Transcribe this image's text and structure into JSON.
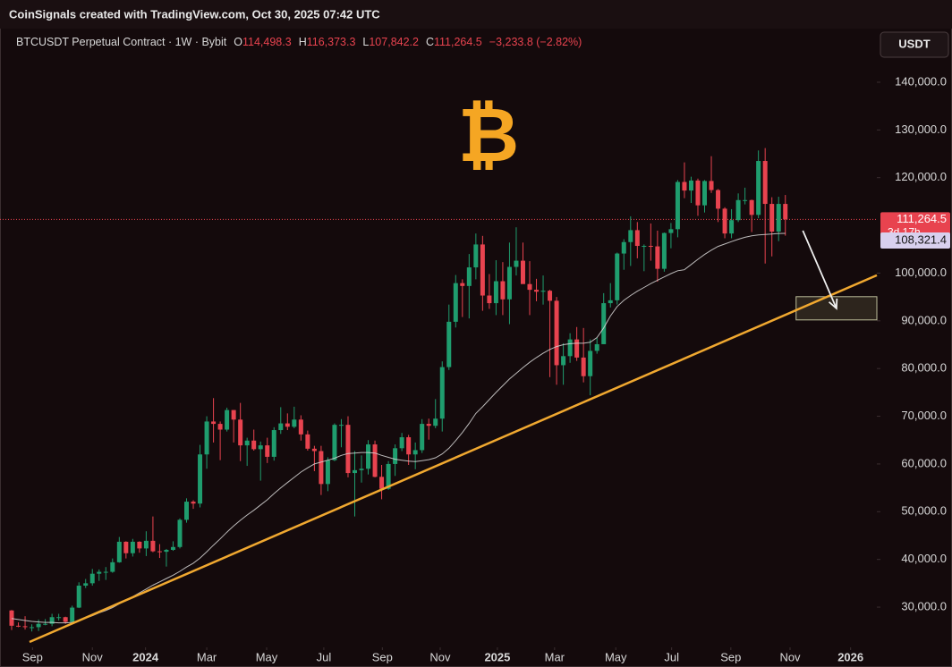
{
  "header": {
    "source": "CoinSignals created with TradingView.com, Oct 30, 2025 07:42 UTC",
    "symbol": "BTCUSDT Perpetual Contract · 1W · Bybit",
    "ohlc": [
      {
        "key": "O",
        "value": "114,498.3"
      },
      {
        "key": "H",
        "value": "116,373.3"
      },
      {
        "key": "L",
        "value": "107,842.2"
      },
      {
        "key": "C",
        "value": "111,264.5"
      }
    ],
    "change": "−3,233.8 (−2.82%)",
    "currency": "USDT"
  },
  "chart_data": {
    "type": "candlestick",
    "logo": "₿",
    "up_color": "#1f9d6e",
    "down_color": "#e8434f",
    "ma_color": "#d9d9d9",
    "grid": false,
    "xlim": [
      -1.73,
      128.6
    ],
    "ylim": [
      21950,
      151610
    ],
    "yticks": [
      {
        "value": 140000,
        "label": "140,000.0"
      },
      {
        "value": 130000,
        "label": "130,000.0"
      },
      {
        "value": 120000,
        "label": "120,000.0"
      },
      {
        "value": 100000,
        "label": "100,000.0"
      },
      {
        "value": 90000,
        "label": "90,000.0"
      },
      {
        "value": 80000,
        "label": "80,000.0"
      },
      {
        "value": 70000,
        "label": "70,000.0"
      },
      {
        "value": 60000,
        "label": "60,000.0"
      },
      {
        "value": 50000,
        "label": "50,000.0"
      },
      {
        "value": 40000,
        "label": "40,000.0"
      },
      {
        "value": 30000,
        "label": "30,000.0"
      }
    ],
    "xticks": [
      {
        "value": 3.1,
        "label": "Sep"
      },
      {
        "value": 12.0,
        "label": "Nov"
      },
      {
        "value": 19.9,
        "label": "2024"
      },
      {
        "value": 29.0,
        "label": "Mar"
      },
      {
        "value": 37.9,
        "label": "May"
      },
      {
        "value": 46.4,
        "label": "Jul"
      },
      {
        "value": 55.1,
        "label": "Sep"
      },
      {
        "value": 63.7,
        "label": "Nov"
      },
      {
        "value": 72.2,
        "label": "2025"
      },
      {
        "value": 80.7,
        "label": "Mar"
      },
      {
        "value": 89.8,
        "label": "May"
      },
      {
        "value": 98.1,
        "label": "Jul"
      },
      {
        "value": 106.9,
        "label": "Sep"
      },
      {
        "value": 115.7,
        "label": "Nov"
      },
      {
        "value": 124.7,
        "label": "2026"
      }
    ],
    "ohlc": [
      [
        29300,
        29400,
        25200,
        26100
      ],
      [
        26100,
        26800,
        25800,
        26000
      ],
      [
        26000,
        28100,
        25300,
        25800
      ],
      [
        25800,
        26400,
        24900,
        25800
      ],
      [
        25800,
        27400,
        25000,
        26500
      ],
      [
        26500,
        27500,
        26200,
        26500
      ],
      [
        26500,
        28600,
        26000,
        27900
      ],
      [
        27900,
        28600,
        27200,
        27900
      ],
      [
        27900,
        28000,
        26500,
        26900
      ],
      [
        26900,
        30300,
        26700,
        29900
      ],
      [
        29900,
        35200,
        29800,
        34500
      ],
      [
        34500,
        35900,
        34000,
        35000
      ],
      [
        35000,
        38000,
        34500,
        37000
      ],
      [
        37000,
        37900,
        35500,
        37400
      ],
      [
        37400,
        38400,
        35700,
        37400
      ],
      [
        37400,
        40200,
        37200,
        39400
      ],
      [
        39400,
        44700,
        39300,
        43700
      ],
      [
        43700,
        43800,
        40200,
        41300
      ],
      [
        41300,
        44300,
        40600,
        43700
      ],
      [
        43700,
        43800,
        41400,
        42300
      ],
      [
        42300,
        45900,
        40700,
        43900
      ],
      [
        43900,
        49000,
        41500,
        41700
      ],
      [
        41700,
        43200,
        40300,
        41600
      ],
      [
        41600,
        42200,
        38500,
        42000
      ],
      [
        42000,
        43800,
        41800,
        42600
      ],
      [
        42600,
        48600,
        42300,
        48300
      ],
      [
        48300,
        52800,
        47700,
        52100
      ],
      [
        52100,
        52400,
        50600,
        51700
      ],
      [
        51700,
        64000,
        50900,
        62000
      ],
      [
        62000,
        70000,
        59000,
        68900
      ],
      [
        68900,
        73800,
        64500,
        68400
      ],
      [
        68400,
        68900,
        60800,
        67200
      ],
      [
        67200,
        71800,
        66800,
        71300
      ],
      [
        71300,
        71300,
        64500,
        69300
      ],
      [
        69300,
        72800,
        60600,
        63900
      ],
      [
        63900,
        65500,
        59600,
        64900
      ],
      [
        64900,
        67200,
        62800,
        63100
      ],
      [
        63100,
        64700,
        56500,
        63900
      ],
      [
        63900,
        65500,
        60200,
        61500
      ],
      [
        61500,
        67700,
        60700,
        67100
      ],
      [
        67100,
        71900,
        66300,
        68500
      ],
      [
        68500,
        70600,
        67100,
        67800
      ],
      [
        67800,
        72000,
        67500,
        69300
      ],
      [
        69300,
        70200,
        64900,
        66200
      ],
      [
        66200,
        67000,
        62800,
        63200
      ],
      [
        63200,
        63800,
        58500,
        62700
      ],
      [
        62700,
        63800,
        53500,
        55800
      ],
      [
        55800,
        61400,
        54300,
        60800
      ],
      [
        60800,
        68500,
        60600,
        68200
      ],
      [
        68200,
        69400,
        63500,
        68200
      ],
      [
        68200,
        70000,
        57200,
        58100
      ],
      [
        58100,
        62700,
        49000,
        58700
      ],
      [
        58700,
        61800,
        56100,
        59000
      ],
      [
        59000,
        65000,
        57800,
        64100
      ],
      [
        64100,
        64900,
        57200,
        57300
      ],
      [
        57300,
        59800,
        52600,
        54800
      ],
      [
        54800,
        60600,
        54600,
        60000
      ],
      [
        60000,
        64100,
        57500,
        63300
      ],
      [
        63300,
        66500,
        62700,
        65600
      ],
      [
        65600,
        66100,
        59800,
        62000
      ],
      [
        62000,
        64500,
        58900,
        62900
      ],
      [
        62900,
        69400,
        62300,
        68400
      ],
      [
        68400,
        69500,
        65100,
        68000
      ],
      [
        68000,
        73600,
        67500,
        69500
      ],
      [
        69500,
        81500,
        66800,
        80300
      ],
      [
        80300,
        93400,
        79700,
        89800
      ],
      [
        89800,
        99600,
        88600,
        97900
      ],
      [
        97900,
        98700,
        90800,
        97300
      ],
      [
        97300,
        104000,
        90500,
        101200
      ],
      [
        101200,
        108300,
        98700,
        106000
      ],
      [
        106000,
        107800,
        92100,
        95300
      ],
      [
        95300,
        99800,
        92500,
        93700
      ],
      [
        93700,
        102700,
        91200,
        98300
      ],
      [
        98300,
        102300,
        91200,
        94500
      ],
      [
        94500,
        106400,
        89300,
        101300
      ],
      [
        101300,
        109600,
        99500,
        102600
      ],
      [
        102600,
        106400,
        97800,
        97700
      ],
      [
        97700,
        102500,
        91200,
        96500
      ],
      [
        96500,
        98800,
        94100,
        96100
      ],
      [
        96100,
        99500,
        93400,
        96300
      ],
      [
        96300,
        96500,
        78200,
        94200
      ],
      [
        94200,
        95000,
        76600,
        80700
      ],
      [
        80700,
        85300,
        76600,
        82600
      ],
      [
        82600,
        87400,
        81200,
        86100
      ],
      [
        86100,
        88700,
        81600,
        82300
      ],
      [
        82300,
        88500,
        77100,
        78400
      ],
      [
        78400,
        86100,
        74400,
        83700
      ],
      [
        83700,
        86400,
        83100,
        85100
      ],
      [
        85100,
        95800,
        85100,
        93700
      ],
      [
        93700,
        97900,
        92800,
        94300
      ],
      [
        94300,
        104300,
        93400,
        104100
      ],
      [
        104100,
        107100,
        100700,
        106500
      ],
      [
        106500,
        111900,
        101500,
        109000
      ],
      [
        109000,
        110700,
        103100,
        105700
      ],
      [
        105700,
        106000,
        100400,
        105700
      ],
      [
        105700,
        110400,
        102600,
        105600
      ],
      [
        105600,
        108900,
        98200,
        100900
      ],
      [
        100900,
        108500,
        100300,
        108400
      ],
      [
        108400,
        110500,
        105200,
        109200
      ],
      [
        109200,
        119500,
        107500,
        119100
      ],
      [
        119100,
        123200,
        115700,
        117300
      ],
      [
        117300,
        120200,
        114700,
        119400
      ],
      [
        119400,
        119800,
        112000,
        114200
      ],
      [
        114200,
        119500,
        112700,
        119300
      ],
      [
        119300,
        124500,
        116800,
        117400
      ],
      [
        117400,
        117600,
        110700,
        113500
      ],
      [
        113500,
        113800,
        107300,
        108300
      ],
      [
        108300,
        113400,
        107300,
        111100
      ],
      [
        111100,
        116700,
        110700,
        115300
      ],
      [
        115300,
        117900,
        114400,
        115300
      ],
      [
        115300,
        115400,
        108600,
        112200
      ],
      [
        112200,
        125700,
        111500,
        123500
      ],
      [
        123500,
        126200,
        102000,
        114500
      ],
      [
        114500,
        115900,
        103500,
        108700
      ],
      [
        108700,
        116000,
        106700,
        114500
      ],
      [
        114498.3,
        116373.3,
        107842.2,
        111264.5
      ]
    ],
    "ma": [
      27600,
      27400,
      27200,
      27000,
      26900,
      26800,
      26800,
      26700,
      26700,
      26800,
      27200,
      27700,
      28200,
      28800,
      29300,
      29900,
      30700,
      31400,
      32200,
      33000,
      33800,
      34600,
      35300,
      36000,
      36700,
      37500,
      38400,
      39200,
      40300,
      41600,
      43000,
      44300,
      45700,
      47000,
      48200,
      49300,
      50300,
      51400,
      52500,
      53800,
      55000,
      56100,
      57200,
      58300,
      59200,
      60000,
      60400,
      60800,
      61200,
      61800,
      62200,
      62300,
      62400,
      62400,
      62300,
      61800,
      61400,
      61000,
      60800,
      60600,
      60500,
      60700,
      60900,
      61300,
      62100,
      63300,
      64900,
      66600,
      68500,
      70600,
      72000,
      73500,
      75000,
      76400,
      77800,
      79000,
      80200,
      81300,
      82300,
      83200,
      84000,
      84600,
      85000,
      85200,
      85300,
      85300,
      85500,
      86500,
      88500,
      91000,
      93000,
      94300,
      95300,
      96200,
      97000,
      97800,
      98500,
      99200,
      99900,
      100500,
      100700,
      101800,
      102900,
      103900,
      104800,
      105600,
      106100,
      106600,
      107100,
      107500,
      107800,
      108000,
      108100,
      108200,
      108300,
      108321.4
    ],
    "last_price": {
      "value": 111264.5,
      "label": "111,264.5",
      "countdown": "3d 17h"
    },
    "ma_tag": {
      "value": 108321.4,
      "label": "108,321.4"
    },
    "trendline": {
      "color": "#f0a830",
      "points": [
        [
          2.66,
          22700
        ],
        [
          128.6,
          99550
        ]
      ]
    },
    "target_zone": {
      "x": [
        116.6,
        128.6
      ],
      "y": [
        90190,
        95060
      ]
    },
    "arrow": {
      "from": [
        117.6,
        108900
      ],
      "to": [
        122.6,
        92600
      ]
    }
  }
}
